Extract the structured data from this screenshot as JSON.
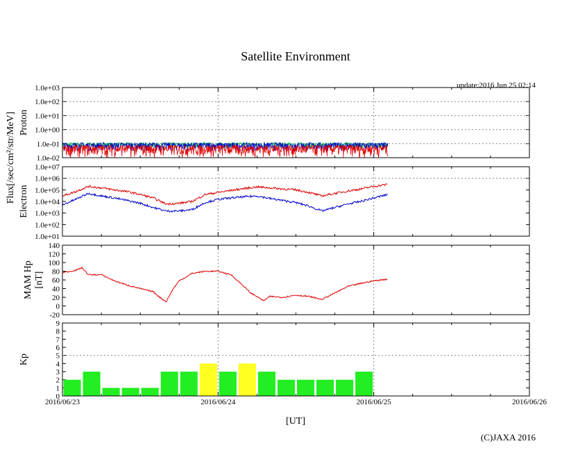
{
  "title": "Satellite Environment",
  "update": "update:2016 Jun 25 02:14",
  "copyright": "(C)JAXA 2016",
  "xlabel": "[UT]",
  "flux_label": "Flux[/sec/cm²/str/MeV]",
  "colors": {
    "red": "#dd0000",
    "blue": "#0000cc",
    "green": "#00bb44",
    "kp_low": "#22ee22",
    "kp_high": "#ffff22",
    "grid": "#888888"
  },
  "chart_data": [
    {
      "type": "line",
      "panel": "proton",
      "ylabel": "Proton",
      "log_scale": true,
      "ylim": [
        0.01,
        1000
      ],
      "yticks": [
        "1.0e-02",
        "1.0e-01",
        "1.0e+00",
        "1.0e+01",
        "1.0e+02",
        "1.0e+03"
      ],
      "x_range": [
        "2016/06/23 00:00",
        "2016/06/26 00:00"
      ],
      "data_end": "2016/06/25 02:14",
      "series": [
        {
          "color": "green",
          "typical_value": 0.09,
          "note_range": [
            0.05,
            0.12
          ]
        },
        {
          "color": "blue",
          "typical_value": 0.08,
          "note_range": [
            0.03,
            0.12
          ]
        },
        {
          "color": "red",
          "typical_value": 0.02,
          "note_range": [
            0.01,
            0.08
          ]
        }
      ]
    },
    {
      "type": "line",
      "panel": "electron",
      "ylabel": "Electron",
      "log_scale": true,
      "ylim": [
        10,
        10000000
      ],
      "yticks": [
        "1.0e+01",
        "1.0e+02",
        "1.0e+03",
        "1.0e+04",
        "1.0e+05",
        "1.0e+06",
        "1.0e+07"
      ],
      "x_hours": [
        0,
        2,
        4,
        6,
        8,
        10,
        12,
        14,
        16,
        18,
        20,
        22,
        24,
        26,
        28,
        30,
        32,
        34,
        36,
        38,
        40,
        42,
        44,
        46,
        48,
        50.2
      ],
      "series": [
        {
          "color": "red",
          "values": [
            30000,
            70000,
            200000,
            150000,
            100000,
            70000,
            40000,
            20000,
            6000,
            7000,
            10000,
            40000,
            60000,
            90000,
            130000,
            180000,
            150000,
            120000,
            100000,
            60000,
            30000,
            50000,
            80000,
            120000,
            200000,
            300000
          ]
        },
        {
          "color": "blue",
          "values": [
            5000,
            15000,
            50000,
            30000,
            20000,
            12000,
            7000,
            3000,
            1500,
            1500,
            2000,
            8000,
            15000,
            20000,
            25000,
            30000,
            18000,
            12000,
            8000,
            4000,
            1500,
            3000,
            6000,
            10000,
            20000,
            40000
          ]
        }
      ]
    },
    {
      "type": "line",
      "panel": "magnetic",
      "ylabel": "MAM Hp",
      "ylabel2": "[nT]",
      "ylim": [
        -20,
        140
      ],
      "yticks": [
        "-20",
        "0",
        "20",
        "40",
        "60",
        "80",
        "100",
        "120",
        "140"
      ],
      "x_hours": [
        0,
        2,
        3,
        4,
        6,
        8,
        10,
        12,
        14,
        15,
        16,
        17,
        18,
        20,
        22,
        24,
        26,
        28,
        29,
        30,
        31,
        32,
        34,
        36,
        38,
        40,
        42,
        44,
        46,
        48,
        50.2
      ],
      "series": [
        {
          "color": "red",
          "values": [
            77,
            82,
            88,
            72,
            72,
            58,
            48,
            40,
            33,
            20,
            10,
            38,
            58,
            75,
            80,
            80,
            72,
            45,
            30,
            22,
            12,
            22,
            20,
            25,
            22,
            15,
            30,
            45,
            52,
            58,
            62
          ]
        }
      ]
    },
    {
      "type": "bar",
      "panel": "kp",
      "ylabel": "Kp",
      "ylim": [
        0,
        9
      ],
      "yticks": [
        "0",
        "1",
        "2",
        "3",
        "4",
        "5",
        "6",
        "7",
        "8",
        "9"
      ],
      "bin_hours": 3,
      "values": [
        2,
        3,
        1,
        1,
        1,
        3,
        3,
        4,
        3,
        4,
        3,
        2,
        2,
        2,
        2,
        3
      ],
      "threshold": 4
    }
  ],
  "xticks": [
    "2016/06/23",
    "2016/06/24",
    "2016/06/25",
    "2016/06/26"
  ]
}
